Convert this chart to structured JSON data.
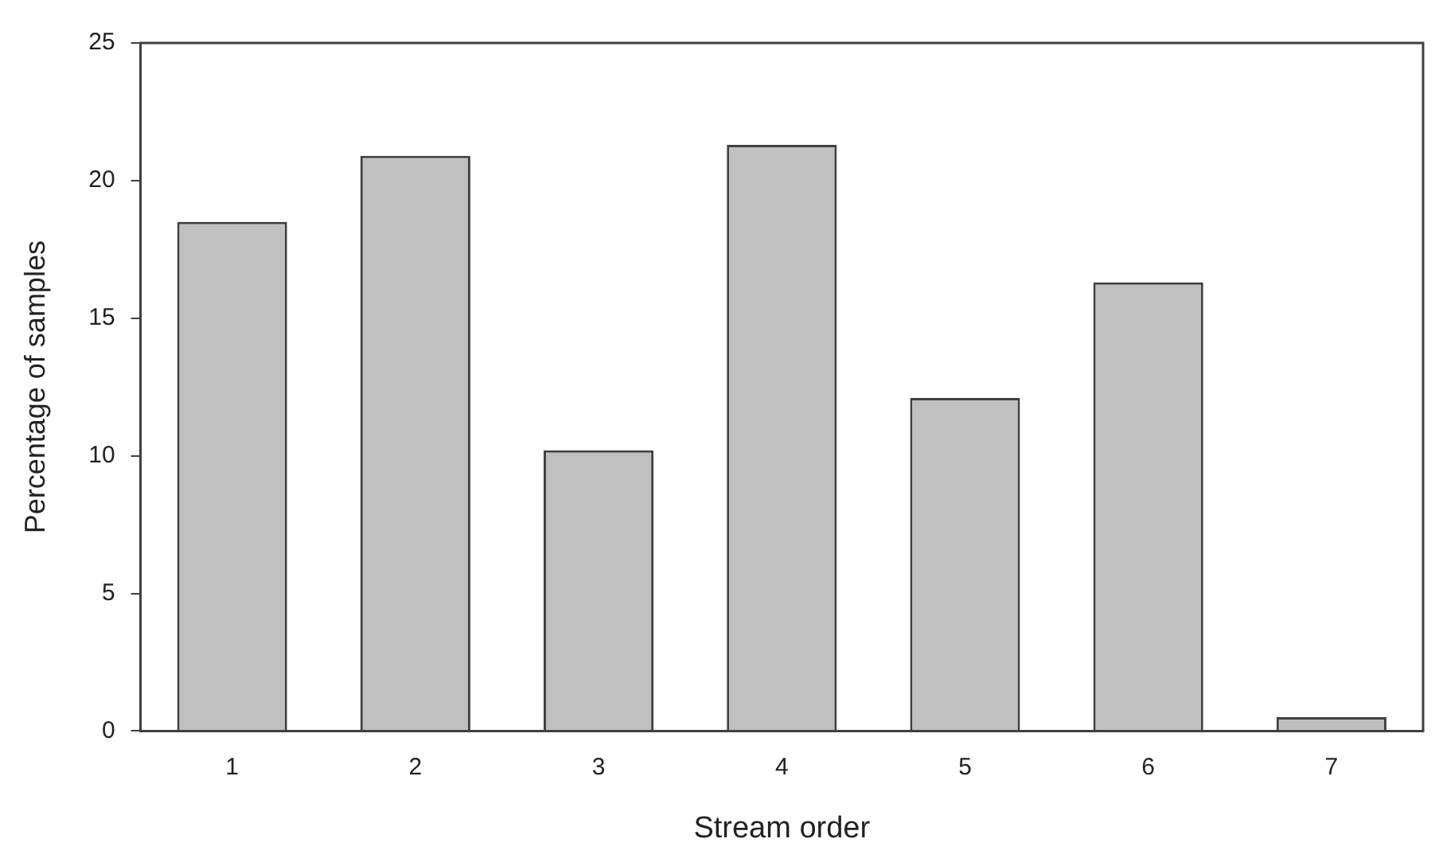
{
  "chart_data": {
    "type": "bar",
    "xlabel": "Stream order",
    "ylabel": "Percentage of samples",
    "categories": [
      "1",
      "2",
      "3",
      "4",
      "5",
      "6",
      "7"
    ],
    "values": [
      18.5,
      20.9,
      10.2,
      21.3,
      12.1,
      16.3,
      0.5
    ],
    "color": "#c0c0c0",
    "ylim": [
      0,
      25
    ],
    "yticks": [
      0,
      5,
      10,
      15,
      20,
      25
    ],
    "grid": false,
    "legend": false
  }
}
